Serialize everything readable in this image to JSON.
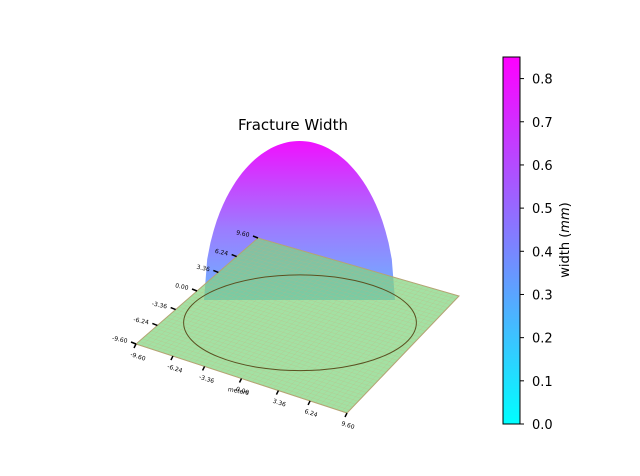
{
  "chart_data": [
    {
      "type": "surface",
      "title": "Fracture Width",
      "xlabel": "meters",
      "x_ticks": [
        "-9.60",
        "-6.24",
        "-3.36",
        "0.00",
        "3.36",
        "6.24",
        "9.60"
      ],
      "y_ticks": [
        "-9.60",
        "-6.24",
        "-3.36",
        "0.00",
        "3.36",
        "6.24",
        "9.60"
      ],
      "xlim": [
        -9.6,
        9.6
      ],
      "ylim": [
        -9.6,
        9.6
      ],
      "fracture_radius": 6.0,
      "max_width": 0.84,
      "shape": "elliptical width profile over circular fracture footprint",
      "plane_color": "#7fd67f",
      "footprint_outline": "circle",
      "colormap": "cool"
    },
    {
      "type": "colorbar",
      "label": "width ($mm$)",
      "label_text": "width (",
      "label_unit": "mm",
      "label_close": ")",
      "range": [
        0.0,
        0.85
      ],
      "ticks": [
        "0.0",
        "0.1",
        "0.2",
        "0.3",
        "0.4",
        "0.5",
        "0.6",
        "0.7",
        "0.8"
      ],
      "colors": [
        "#00ffff",
        "#ff00ff"
      ]
    }
  ]
}
